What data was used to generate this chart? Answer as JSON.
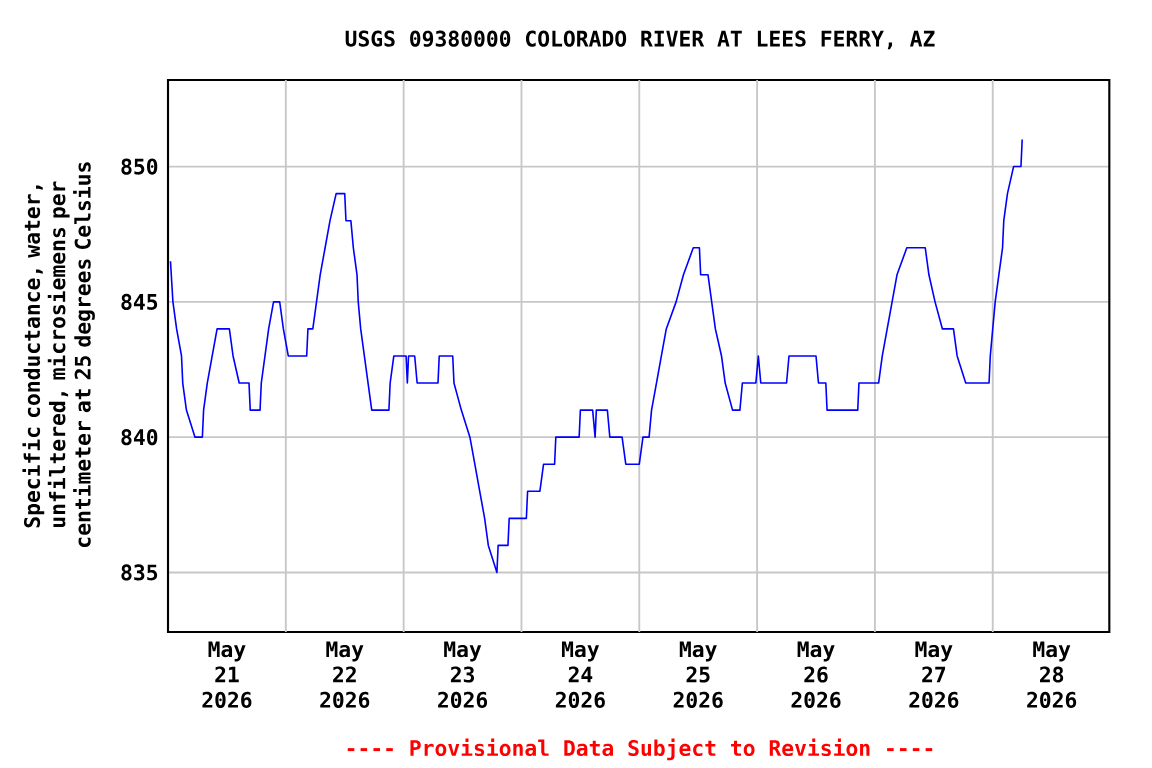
{
  "chart_data": {
    "type": "line",
    "title": "USGS 09380000 COLORADO RIVER AT LEES FERRY, AZ",
    "ylabel": "Specific conductance, water, unfiltered, microsiemens per centimeter at 25 degrees Celsius",
    "annotations": [
      "---- Provisional Data Subject to Revision ----"
    ],
    "xlim": [
      "2026-05-21T00:00",
      "2026-05-28T23:45"
    ],
    "ylim": [
      832.8,
      853.2
    ],
    "yticks": [
      835,
      840,
      845,
      850
    ],
    "xticks": [
      {
        "value": "2026-05-21T12:00",
        "label": "May 21 2026"
      },
      {
        "value": "2026-05-22T12:00",
        "label": "May 22 2026"
      },
      {
        "value": "2026-05-23T12:00",
        "label": "May 23 2026"
      },
      {
        "value": "2026-05-24T12:00",
        "label": "May 24 2026"
      },
      {
        "value": "2026-05-25T12:00",
        "label": "May 25 2026"
      },
      {
        "value": "2026-05-26T12:00",
        "label": "May 26 2026"
      },
      {
        "value": "2026-05-27T12:00",
        "label": "May 27 2026"
      },
      {
        "value": "2026-05-28T12:00",
        "label": "May 28 2026"
      },
      {
        "value": "2026-05-22T00:00",
        "label": null
      },
      {
        "value": "2026-05-23T00:00",
        "label": null
      },
      {
        "value": "2026-05-24T00:00",
        "label": null
      },
      {
        "value": "2026-05-25T00:00",
        "label": null
      },
      {
        "value": "2026-05-26T00:00",
        "label": null
      },
      {
        "value": "2026-05-27T00:00",
        "label": null
      },
      {
        "value": "2026-05-28T00:00",
        "label": null
      }
    ],
    "grid": true,
    "marker": "none",
    "line_style": "solid",
    "x": [
      "2026-05-21T00:30",
      "2026-05-21T01:00",
      "2026-05-21T01:45",
      "2026-05-21T02:45",
      "2026-05-21T03:00",
      "2026-05-21T03:45",
      "2026-05-21T05:30",
      "2026-05-21T07:00",
      "2026-05-21T07:15",
      "2026-05-21T08:00",
      "2026-05-21T09:00",
      "2026-05-21T10:00",
      "2026-05-21T12:30",
      "2026-05-21T13:15",
      "2026-05-21T14:30",
      "2026-05-21T16:30",
      "2026-05-21T16:45",
      "2026-05-21T18:45",
      "2026-05-21T19:00",
      "2026-05-21T19:45",
      "2026-05-21T20:30",
      "2026-05-21T21:30",
      "2026-05-21T22:45",
      "2026-05-21T23:30",
      "2026-05-22T00:30",
      "2026-05-22T04:15",
      "2026-05-22T04:30",
      "2026-05-22T05:30",
      "2026-05-22T06:15",
      "2026-05-22T07:00",
      "2026-05-22T08:00",
      "2026-05-22T09:00",
      "2026-05-22T10:15",
      "2026-05-22T12:00",
      "2026-05-22T12:15",
      "2026-05-22T13:15",
      "2026-05-22T13:45",
      "2026-05-22T14:30",
      "2026-05-22T14:45",
      "2026-05-22T15:15",
      "2026-05-22T16:00",
      "2026-05-22T16:45",
      "2026-05-22T17:30",
      "2026-05-22T21:00",
      "2026-05-22T21:15",
      "2026-05-22T22:00",
      "2026-05-23T00:30",
      "2026-05-23T00:45",
      "2026-05-23T01:00",
      "2026-05-23T02:15",
      "2026-05-23T02:45",
      "2026-05-23T07:00",
      "2026-05-23T07:15",
      "2026-05-23T10:00",
      "2026-05-23T10:15",
      "2026-05-23T11:45",
      "2026-05-23T13:30",
      "2026-05-23T14:30",
      "2026-05-23T15:30",
      "2026-05-23T16:30",
      "2026-05-23T17:15",
      "2026-05-23T19:00",
      "2026-05-23T19:15",
      "2026-05-23T21:15",
      "2026-05-23T21:30",
      "2026-05-24T01:00",
      "2026-05-24T01:15",
      "2026-05-24T03:45",
      "2026-05-24T04:30",
      "2026-05-24T06:45",
      "2026-05-24T07:00",
      "2026-05-24T11:45",
      "2026-05-24T12:00",
      "2026-05-24T14:30",
      "2026-05-24T15:00",
      "2026-05-24T15:15",
      "2026-05-24T17:30",
      "2026-05-24T18:00",
      "2026-05-24T20:30",
      "2026-05-24T21:15",
      "2026-05-25T00:00",
      "2026-05-25T00:45",
      "2026-05-25T02:00",
      "2026-05-25T02:30",
      "2026-05-25T03:30",
      "2026-05-25T04:30",
      "2026-05-25T05:30",
      "2026-05-25T07:30",
      "2026-05-25T09:00",
      "2026-05-25T11:00",
      "2026-05-25T12:15",
      "2026-05-25T12:30",
      "2026-05-25T14:00",
      "2026-05-25T14:45",
      "2026-05-25T15:30",
      "2026-05-25T16:45",
      "2026-05-25T17:30",
      "2026-05-25T19:00",
      "2026-05-25T20:30",
      "2026-05-25T21:00",
      "2026-05-25T23:45",
      "2026-05-26T00:15",
      "2026-05-26T00:45",
      "2026-05-26T06:00",
      "2026-05-26T06:30",
      "2026-05-26T12:00",
      "2026-05-26T12:30",
      "2026-05-26T14:00",
      "2026-05-26T14:15",
      "2026-05-26T20:30",
      "2026-05-26T20:45",
      "2026-05-27T00:45",
      "2026-05-27T01:30",
      "2026-05-27T02:30",
      "2026-05-27T03:30",
      "2026-05-27T04:30",
      "2026-05-27T06:30",
      "2026-05-27T10:15",
      "2026-05-27T11:00",
      "2026-05-27T12:15",
      "2026-05-27T13:45",
      "2026-05-27T16:00",
      "2026-05-27T16:45",
      "2026-05-27T18:30",
      "2026-05-27T23:15",
      "2026-05-27T23:30",
      "2026-05-28T00:00",
      "2026-05-28T00:30",
      "2026-05-28T01:15",
      "2026-05-28T02:00",
      "2026-05-28T02:15",
      "2026-05-28T03:00",
      "2026-05-28T04:15",
      "2026-05-28T05:45",
      "2026-05-28T06:00"
    ],
    "series": [
      {
        "color": "#0000ff",
        "values": [
          846.5,
          845,
          844,
          843,
          842,
          841,
          840,
          840,
          841,
          842,
          843,
          844,
          844,
          843,
          842,
          842,
          841,
          841,
          842,
          843,
          844,
          845,
          845,
          844,
          843,
          843,
          844,
          844,
          845,
          846,
          847,
          848,
          849,
          849,
          848,
          848,
          847,
          846,
          845,
          844,
          843,
          842,
          841,
          841,
          842,
          843,
          843,
          842,
          843,
          843,
          842,
          842,
          843,
          843,
          842,
          841,
          840,
          839,
          838,
          837,
          836,
          835,
          836,
          836,
          837,
          837,
          838,
          838,
          839,
          839,
          840,
          840,
          841,
          841,
          840,
          841,
          841,
          840,
          840,
          839,
          839,
          840,
          840,
          841,
          842,
          843,
          844,
          845,
          846,
          847,
          847,
          846,
          846,
          845,
          844,
          843,
          842,
          841,
          841,
          842,
          842,
          843,
          842,
          842,
          843,
          843,
          842,
          842,
          841,
          841,
          842,
          842,
          843,
          844,
          845,
          846,
          847,
          847,
          846,
          845,
          844,
          844,
          843,
          842,
          842,
          843,
          844,
          845,
          846,
          847,
          848,
          849,
          850,
          850,
          851
        ]
      }
    ]
  }
}
